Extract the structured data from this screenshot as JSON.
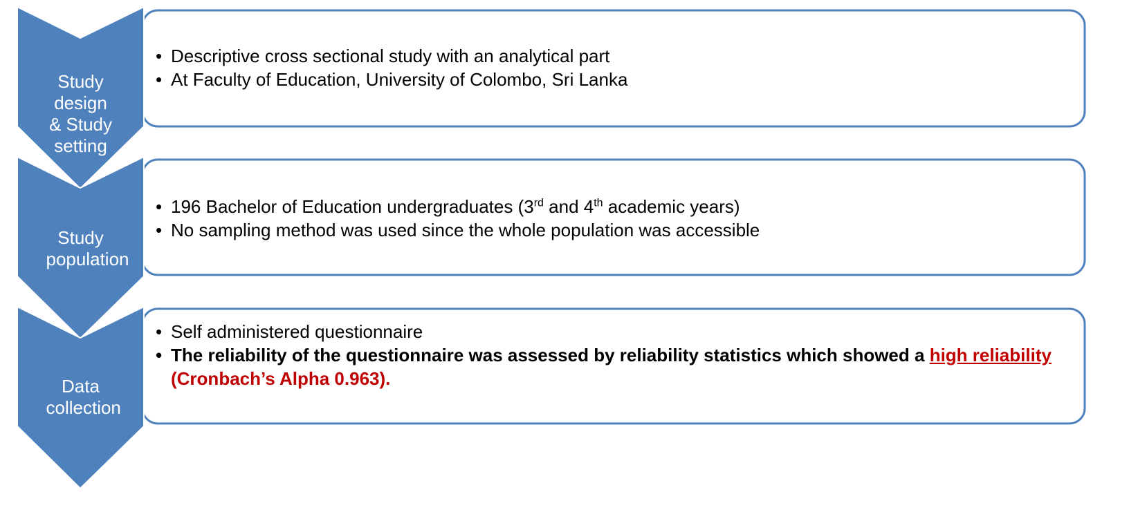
{
  "steps": [
    {
      "label": "Study design & Study setting",
      "bullets": [
        [
          "Descriptive cross sectional study with an analytical part"
        ],
        [
          "At Faculty of Education, University of Colombo, Sri Lanka"
        ]
      ]
    },
    {
      "label": "Study population",
      "bullets": [
        [
          "196 Bachelor of Education undergraduates  (3",
          "rd",
          " and 4",
          "th",
          " academic years)"
        ],
        [
          "No sampling method was used since the whole population was accessible"
        ]
      ]
    },
    {
      "label": "Data collection",
      "bullets": [
        [
          "Self administered questionnaire"
        ],
        [
          "The reliability of the questionnaire was assessed by reliability statistics which showed a ",
          "high reliability",
          " (Cronbach’s Alpha 0.963)."
        ]
      ]
    }
  ]
}
